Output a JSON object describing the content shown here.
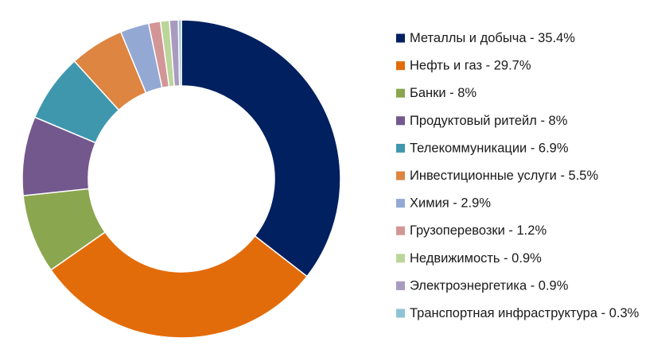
{
  "chart_data": {
    "type": "pie",
    "donut": true,
    "legend_position": "right",
    "slices": [
      {
        "label": "Металлы и добыча - 35.4%",
        "value": 35.4,
        "color": "#002060"
      },
      {
        "label": "Нефть и газ - 29.7%",
        "value": 29.7,
        "color": "#E36C0A"
      },
      {
        "label": "Банки - 8%",
        "value": 8,
        "color": "#8AA64F"
      },
      {
        "label": "Продуктовый ритейл - 8%",
        "value": 8,
        "color": "#72588D"
      },
      {
        "label": "Телекоммуникации - 6.9%",
        "value": 6.9,
        "color": "#3F97AE"
      },
      {
        "label": "Инвестиционные услуги - 5.5%",
        "value": 5.5,
        "color": "#DD8541"
      },
      {
        "label": "Химия - 2.9%",
        "value": 2.9,
        "color": "#93A9D4"
      },
      {
        "label": "Грузоперевозки - 1.2%",
        "value": 1.2,
        "color": "#D39696"
      },
      {
        "label": "Недвижимость - 0.9%",
        "value": 0.9,
        "color": "#BCD59A"
      },
      {
        "label": "Электроэнергетика - 0.9%",
        "value": 0.9,
        "color": "#A99BC0"
      },
      {
        "label": "Транспортная инфраструктура - 0.3%",
        "value": 0.3,
        "color": "#8FC3D6"
      }
    ]
  }
}
